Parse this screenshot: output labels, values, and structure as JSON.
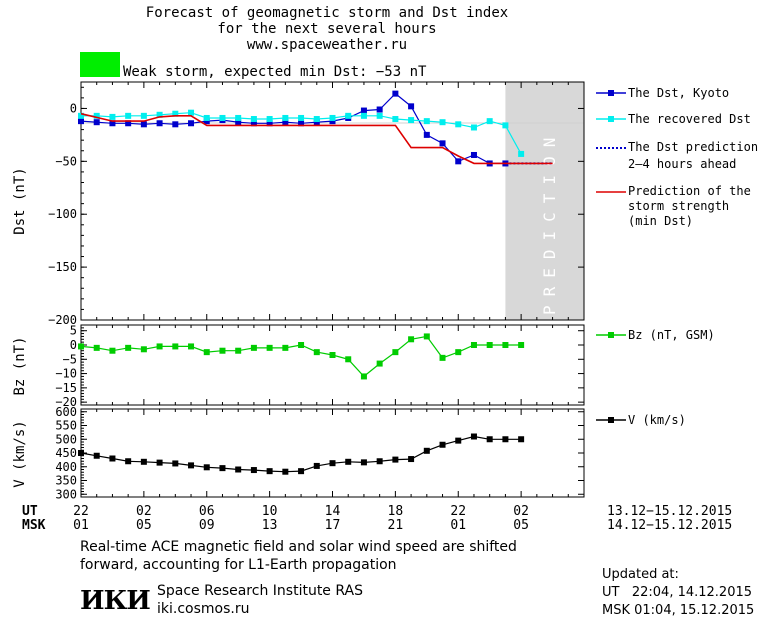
{
  "header": {
    "title_lines": [
      "Forecast of geomagnetic storm and Dst index",
      "for the next several hours",
      "www.spaceweather.ru"
    ],
    "storm_color": "#00ee00",
    "storm_label": "Weak storm, expected min Dst: −53 nT"
  },
  "axis_rows": {
    "ut_label": "UT",
    "msk_label": "MSK",
    "ut_ticks": [
      "22",
      "02",
      "06",
      "10",
      "14",
      "18",
      "22",
      "02"
    ],
    "msk_ticks": [
      "01",
      "05",
      "09",
      "13",
      "17",
      "21",
      "01",
      "05"
    ],
    "ut_range": "13.12−15.12.2015",
    "msk_range": "14.12−15.12.2015"
  },
  "prediction_label": "PREDICTION",
  "footnote": {
    "line1": "Real-time ACE magnetic field and solar wind speed are shifted",
    "line2": "forward, accounting for L1-Earth propagation"
  },
  "institute": {
    "logo": "ИКИ",
    "name": "Space Research Institute RAS",
    "url": "iki.cosmos.ru"
  },
  "updated": {
    "label": "Updated at:",
    "ut": "UT   22:04, 14.12.2015",
    "msk": "MSK 01:04, 15.12.2015"
  },
  "chart_data": [
    {
      "type": "line",
      "ylabel": "Dst (nT)",
      "ylim": [
        -200,
        25
      ],
      "yticks": [
        0,
        -50,
        -100,
        -150,
        -200
      ],
      "xlim": [
        0,
        32
      ],
      "prediction_window": [
        27,
        32
      ],
      "series": [
        {
          "name": "The Dst, Kyoto",
          "color": "#0000cc",
          "marker": "square",
          "x": [
            0,
            1,
            2,
            3,
            4,
            5,
            6,
            7,
            8,
            9,
            10,
            11,
            12,
            13,
            14,
            15,
            16,
            17,
            18,
            19,
            20,
            21,
            22,
            23,
            24,
            25,
            26,
            27
          ],
          "y": [
            -12,
            -13,
            -14,
            -14,
            -15,
            -14,
            -15,
            -14,
            -12,
            -11,
            -13,
            -14,
            -14,
            -13,
            -14,
            -13,
            -12,
            -9,
            -2,
            -1,
            14,
            2,
            -25,
            -33,
            -50,
            -44,
            -52,
            -52
          ]
        },
        {
          "name": "The recovered Dst",
          "color": "#00eeee",
          "marker": "square",
          "x": [
            0,
            1,
            2,
            3,
            4,
            5,
            6,
            7,
            8,
            9,
            10,
            11,
            12,
            13,
            14,
            15,
            16,
            17,
            18,
            19,
            20,
            21,
            22,
            23,
            24,
            25,
            26,
            27,
            28
          ],
          "y": [
            -7,
            -7,
            -8,
            -7,
            -7,
            -6,
            -5,
            -4,
            -9,
            -9,
            -9,
            -10,
            -10,
            -9,
            -9,
            -10,
            -9,
            -7,
            -7,
            -7,
            -10,
            -11,
            -12,
            -13,
            -15,
            -18,
            -12,
            -16,
            -43
          ]
        },
        {
          "name": "The Dst prediction 2−4 hours ahead",
          "color": "#0000cc",
          "marker": "dotted",
          "x": [
            27,
            28,
            29,
            30
          ],
          "y": [
            -52,
            -52,
            -52,
            -52
          ]
        },
        {
          "name": "Prediction of the storm strength (min Dst)",
          "color": "#dd0000",
          "marker": "step",
          "x": [
            0,
            2,
            4,
            5,
            6,
            7,
            8,
            20,
            21,
            23,
            24,
            25,
            30
          ],
          "y": [
            -5,
            -12,
            -12,
            -8,
            -7,
            -7,
            -16,
            -16,
            -37,
            -37,
            -45,
            -52,
            -52
          ]
        }
      ]
    },
    {
      "type": "line",
      "ylabel": "Bz (nT)",
      "ylim": [
        -21,
        7
      ],
      "yticks": [
        5,
        0,
        -5,
        -10,
        -15,
        -20
      ],
      "xlim": [
        0,
        32
      ],
      "series": [
        {
          "name": "Bz (nT, GSM)",
          "color": "#00cc00",
          "marker": "square",
          "x": [
            0,
            1,
            2,
            3,
            4,
            5,
            6,
            7,
            8,
            9,
            10,
            11,
            12,
            13,
            14,
            15,
            16,
            17,
            18,
            19,
            20,
            21,
            22,
            23,
            24,
            25,
            26,
            27,
            28
          ],
          "y": [
            -0.5,
            -1,
            -2,
            -1,
            -1.5,
            -0.5,
            -0.5,
            -0.5,
            -2.5,
            -2,
            -2,
            -1,
            -1,
            -1,
            0,
            -2.5,
            -3.5,
            -5,
            -11,
            -6.5,
            -2.5,
            2,
            3,
            -4.5,
            -2.5,
            0,
            0,
            0,
            0
          ]
        }
      ]
    },
    {
      "type": "line",
      "ylabel": "V (km/s)",
      "ylim": [
        290,
        610
      ],
      "yticks": [
        300,
        350,
        400,
        450,
        500,
        550,
        600
      ],
      "xlim": [
        0,
        32
      ],
      "series": [
        {
          "name": "V (km/s)",
          "color": "#000000",
          "marker": "square",
          "x": [
            0,
            1,
            2,
            3,
            4,
            5,
            6,
            7,
            8,
            9,
            10,
            11,
            12,
            13,
            14,
            15,
            16,
            17,
            18,
            19,
            20,
            21,
            22,
            23,
            24,
            25,
            26,
            27,
            28
          ],
          "y": [
            450,
            440,
            430,
            420,
            418,
            415,
            412,
            405,
            398,
            395,
            390,
            388,
            384,
            382,
            384,
            403,
            413,
            418,
            416,
            420,
            426,
            428,
            458,
            480,
            495,
            510,
            500,
            500,
            500
          ]
        }
      ]
    }
  ]
}
